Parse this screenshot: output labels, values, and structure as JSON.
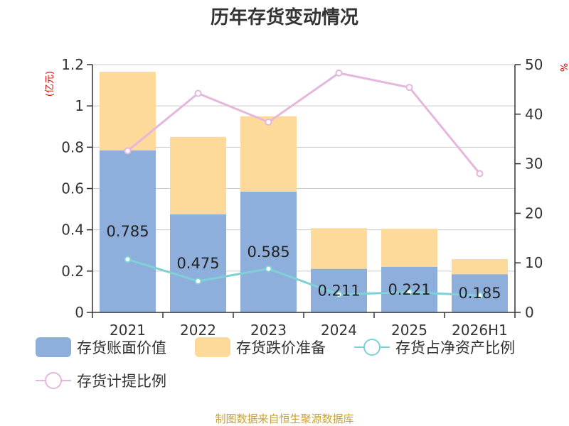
{
  "chart_data": {
    "type": "bar",
    "title": "历年存货变动情况",
    "categories": [
      "2021",
      "2022",
      "2023",
      "2024",
      "2025",
      "2026H1"
    ],
    "y_left": {
      "unit": "(亿元)",
      "lim": [
        0,
        1.2
      ],
      "ticks": [
        "0",
        "0.2",
        "0.4",
        "0.6",
        "0.8",
        "1",
        "1.2"
      ]
    },
    "y_right": {
      "unit": "%",
      "lim": [
        0,
        50
      ],
      "ticks": [
        "0",
        "10",
        "20",
        "30",
        "40",
        "50"
      ]
    },
    "series": [
      {
        "name": "存货账面价值",
        "kind": "bar",
        "stack": true,
        "axis": "left",
        "color": "#8eaedb",
        "values": [
          0.785,
          0.475,
          0.585,
          0.211,
          0.221,
          0.185
        ],
        "labels": [
          "0.785",
          "0.475",
          "0.585",
          "0.211",
          "0.221",
          "0.185"
        ]
      },
      {
        "name": "存货跌价准备",
        "kind": "bar",
        "stack": true,
        "axis": "left",
        "color": "#fdd99a",
        "values": [
          0.38,
          0.375,
          0.365,
          0.197,
          0.184,
          0.073
        ]
      },
      {
        "name": "存货占净资产比例",
        "kind": "line",
        "axis": "right",
        "color": "#7fd1d6",
        "values": [
          10.7,
          6.3,
          8.8,
          3.6,
          4.1,
          3.4
        ]
      },
      {
        "name": "存货计提比例",
        "kind": "line",
        "axis": "right",
        "color": "#e6b7dc",
        "values": [
          32.6,
          44.2,
          38.4,
          48.3,
          45.4,
          28.0
        ]
      }
    ],
    "grid": true,
    "legend": "bottom"
  },
  "footer": {
    "source": "制图数据来自恒生聚源数据库"
  }
}
